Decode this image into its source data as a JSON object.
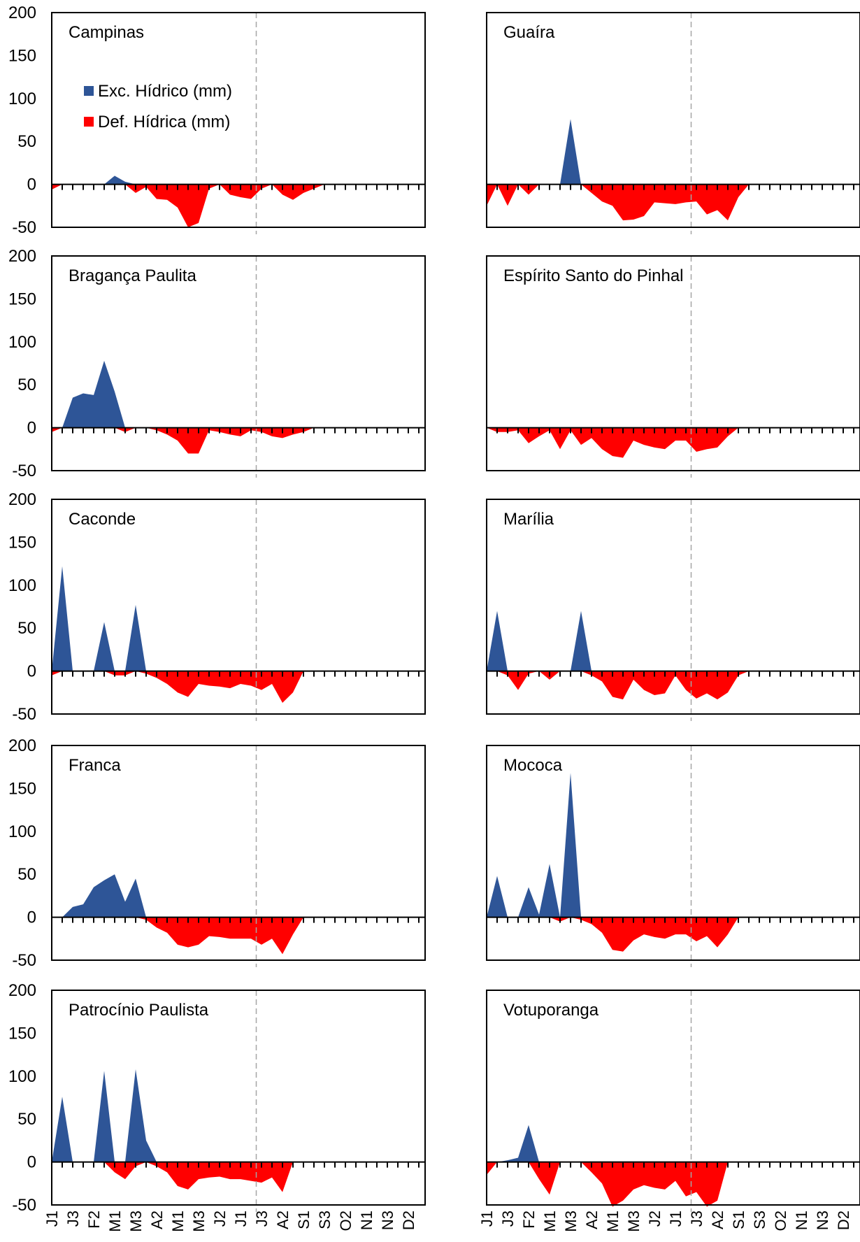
{
  "figure": {
    "legend": [
      {
        "label": "Exc. Hídrico (mm)",
        "color": "#2E5597"
      },
      {
        "label": "Def. Hídrica (mm)",
        "color": "#FF0000"
      }
    ],
    "x_tick_labels": [
      "J1",
      "J3",
      "F2",
      "M1",
      "M3",
      "A2",
      "M1",
      "M3",
      "J2",
      "J1",
      "J3",
      "A2",
      "S1",
      "S3",
      "O2",
      "N1",
      "N3",
      "D2"
    ],
    "y_tick_labels": [
      "200",
      "150",
      "100",
      "50",
      "0",
      "-50"
    ],
    "colors": {
      "excess": "#2E5597",
      "deficit": "#FF0000",
      "divider": "#A6A6A6",
      "frame": "#000000"
    }
  },
  "chart_data": [
    {
      "type": "area",
      "title": "Campinas",
      "ylim": [
        -50,
        200
      ],
      "series": [
        {
          "name": "Exc. Hídrico (mm)",
          "values": [
            0,
            0,
            0,
            0,
            0,
            0,
            10,
            3,
            0,
            0,
            0,
            0,
            0,
            0,
            0,
            0,
            0,
            0,
            0,
            0,
            0,
            0,
            0,
            0,
            0,
            0,
            0,
            0,
            0,
            0,
            0,
            0,
            0,
            0,
            0,
            0
          ]
        },
        {
          "name": "Def. Hídrica (mm)",
          "values": [
            -6,
            0,
            0,
            0,
            0,
            0,
            0,
            0,
            -10,
            -3,
            -17,
            -18,
            -27,
            -50,
            -45,
            -5,
            0,
            -12,
            -15,
            -17,
            -5,
            0,
            -12,
            -18,
            -10,
            -5,
            0,
            0,
            0,
            0,
            0,
            0,
            0,
            0,
            0,
            0
          ]
        }
      ]
    },
    {
      "type": "area",
      "title": "Guaíra",
      "ylim": [
        -50,
        200
      ],
      "series": [
        {
          "name": "Exc. Hídrico (mm)",
          "values": [
            0,
            0,
            0,
            0,
            0,
            0,
            0,
            0,
            76,
            0,
            0,
            0,
            0,
            0,
            0,
            0,
            0,
            0,
            0,
            0,
            0,
            0,
            0,
            0,
            0,
            0,
            0,
            0,
            0,
            0,
            0,
            0,
            0,
            0,
            0,
            0
          ]
        },
        {
          "name": "Def. Hídrica (mm)",
          "values": [
            -25,
            0,
            -25,
            0,
            -12,
            0,
            0,
            0,
            0,
            0,
            -10,
            -20,
            -25,
            -42,
            -41,
            -37,
            -21,
            -22,
            -23,
            -21,
            -20,
            -35,
            -30,
            -42,
            -15,
            0,
            0,
            0,
            0,
            0,
            0,
            0,
            0,
            0,
            0,
            0
          ]
        }
      ]
    },
    {
      "type": "area",
      "title": "Bragança Paulita",
      "ylim": [
        -50,
        200
      ],
      "series": [
        {
          "name": "Exc. Hídrico (mm)",
          "values": [
            0,
            0,
            35,
            40,
            38,
            78,
            42,
            0,
            0,
            0,
            0,
            0,
            0,
            0,
            0,
            0,
            0,
            0,
            0,
            0,
            0,
            0,
            0,
            0,
            0,
            0,
            0,
            0,
            0,
            0,
            0,
            0,
            0,
            0,
            0,
            0
          ]
        },
        {
          "name": "Def. Hídrica (mm)",
          "values": [
            -5,
            0,
            0,
            0,
            0,
            0,
            0,
            -5,
            0,
            0,
            -3,
            -8,
            -15,
            -30,
            -30,
            -3,
            -5,
            -8,
            -10,
            -3,
            -5,
            -10,
            -12,
            -8,
            -5,
            0,
            0,
            0,
            0,
            0,
            0,
            0,
            0,
            0,
            0,
            0
          ]
        }
      ]
    },
    {
      "type": "area",
      "title": "Espírito Santo do Pinhal",
      "ylim": [
        -50,
        200
      ],
      "series": [
        {
          "name": "Exc. Hídrico (mm)",
          "values": [
            0,
            0,
            0,
            0,
            0,
            0,
            0,
            0,
            0,
            0,
            0,
            0,
            0,
            0,
            0,
            0,
            0,
            0,
            0,
            0,
            0,
            0,
            0,
            0,
            0,
            0,
            0,
            0,
            0,
            0,
            0,
            0,
            0,
            0,
            0,
            0
          ]
        },
        {
          "name": "Def. Hídrica (mm)",
          "values": [
            0,
            -5,
            -5,
            -3,
            -18,
            -10,
            -3,
            -25,
            -3,
            -20,
            -12,
            -25,
            -33,
            -35,
            -15,
            -20,
            -23,
            -25,
            -15,
            -15,
            -28,
            -25,
            -23,
            -10,
            0,
            0,
            0,
            0,
            0,
            0,
            0,
            0,
            0,
            0,
            0,
            0
          ]
        }
      ]
    },
    {
      "type": "area",
      "title": "Caconde",
      "ylim": [
        -50,
        200
      ],
      "series": [
        {
          "name": "Exc. Hídrico (mm)",
          "values": [
            0,
            122,
            0,
            0,
            0,
            57,
            0,
            0,
            77,
            0,
            0,
            0,
            0,
            0,
            0,
            0,
            0,
            0,
            0,
            0,
            0,
            0,
            0,
            0,
            0,
            0,
            0,
            0,
            0,
            0,
            0,
            0,
            0,
            0,
            0,
            0
          ]
        },
        {
          "name": "Def. Hídrica (mm)",
          "values": [
            -5,
            0,
            0,
            0,
            0,
            0,
            -5,
            -5,
            0,
            -3,
            -8,
            -15,
            -25,
            -30,
            -15,
            -17,
            -18,
            -20,
            -15,
            -17,
            -22,
            -15,
            -37,
            -25,
            0,
            0,
            0,
            0,
            0,
            0,
            0,
            0,
            0,
            0,
            0,
            0
          ]
        }
      ]
    },
    {
      "type": "area",
      "title": "Marília",
      "ylim": [
        -50,
        200
      ],
      "series": [
        {
          "name": "Exc. Hídrico (mm)",
          "values": [
            0,
            70,
            0,
            0,
            0,
            0,
            0,
            0,
            0,
            70,
            0,
            0,
            0,
            0,
            0,
            0,
            0,
            0,
            0,
            0,
            0,
            0,
            0,
            0,
            0,
            0,
            0,
            0,
            0,
            0,
            0,
            0,
            0,
            0,
            0,
            0
          ]
        },
        {
          "name": "Def. Hídrica (mm)",
          "values": [
            0,
            0,
            -5,
            -22,
            -3,
            0,
            -10,
            0,
            0,
            0,
            -5,
            -12,
            -30,
            -33,
            -10,
            -22,
            -28,
            -26,
            -5,
            -22,
            -32,
            -26,
            -33,
            -25,
            -5,
            0,
            0,
            0,
            0,
            0,
            0,
            0,
            0,
            0,
            0,
            0
          ]
        }
      ]
    },
    {
      "type": "area",
      "title": "Franca",
      "ylim": [
        -50,
        200
      ],
      "series": [
        {
          "name": "Exc. Hídrico (mm)",
          "values": [
            0,
            0,
            12,
            15,
            35,
            43,
            50,
            18,
            45,
            0,
            0,
            0,
            0,
            0,
            0,
            0,
            0,
            0,
            0,
            0,
            0,
            0,
            0,
            0,
            0,
            0,
            0,
            0,
            0,
            0,
            0,
            0,
            0,
            0,
            0,
            0
          ]
        },
        {
          "name": "Def. Hídrica (mm)",
          "values": [
            0,
            0,
            0,
            0,
            0,
            0,
            0,
            0,
            0,
            -3,
            -12,
            -18,
            -32,
            -35,
            -32,
            -22,
            -23,
            -25,
            -25,
            -25,
            -32,
            -25,
            -43,
            -20,
            0,
            0,
            0,
            0,
            0,
            0,
            0,
            0,
            0,
            0,
            0,
            0
          ]
        }
      ]
    },
    {
      "type": "area",
      "title": "Mococa",
      "ylim": [
        -50,
        200
      ],
      "series": [
        {
          "name": "Exc. Hídrico (mm)",
          "values": [
            0,
            48,
            0,
            0,
            35,
            3,
            62,
            0,
            168,
            0,
            0,
            0,
            0,
            0,
            0,
            0,
            0,
            0,
            0,
            0,
            0,
            0,
            0,
            0,
            0,
            0,
            0,
            0,
            0,
            0,
            0,
            0,
            0,
            0,
            0,
            0
          ]
        },
        {
          "name": "Def. Hídrica (mm)",
          "values": [
            0,
            0,
            0,
            0,
            0,
            0,
            0,
            -5,
            0,
            -3,
            -8,
            -18,
            -38,
            -40,
            -27,
            -20,
            -23,
            -25,
            -20,
            -20,
            -28,
            -22,
            -35,
            -20,
            0,
            0,
            0,
            0,
            0,
            0,
            0,
            0,
            0,
            0,
            0,
            0
          ]
        }
      ]
    },
    {
      "type": "area",
      "title": "Patrocínio Paulista",
      "ylim": [
        -50,
        200
      ],
      "series": [
        {
          "name": "Exc. Hídrico (mm)",
          "values": [
            0,
            76,
            0,
            0,
            0,
            106,
            0,
            0,
            108,
            25,
            0,
            0,
            0,
            0,
            0,
            0,
            0,
            0,
            0,
            0,
            0,
            0,
            0,
            0,
            0,
            0,
            0,
            0,
            0,
            0,
            0,
            0,
            0,
            0,
            0,
            0
          ]
        },
        {
          "name": "Def. Hídrica (mm)",
          "values": [
            0,
            0,
            0,
            0,
            0,
            0,
            -12,
            -20,
            -5,
            0,
            -5,
            -12,
            -28,
            -32,
            -20,
            -18,
            -17,
            -20,
            -20,
            -22,
            -24,
            -18,
            -35,
            0,
            0,
            0,
            0,
            0,
            0,
            0,
            0,
            0,
            0,
            0,
            0,
            0
          ]
        }
      ]
    },
    {
      "type": "area",
      "title": "Votuporanga",
      "ylim": [
        -50,
        200
      ],
      "series": [
        {
          "name": "Exc. Hídrico (mm)",
          "values": [
            0,
            0,
            2,
            5,
            43,
            0,
            0,
            0,
            0,
            0,
            0,
            0,
            0,
            0,
            0,
            0,
            0,
            0,
            0,
            0,
            0,
            0,
            0,
            0,
            0,
            0,
            0,
            0,
            0,
            0,
            0,
            0,
            0,
            0,
            0,
            0
          ]
        },
        {
          "name": "Def. Hídrica (mm)",
          "values": [
            -15,
            0,
            0,
            0,
            0,
            -20,
            -38,
            0,
            0,
            0,
            -12,
            -25,
            -52,
            -45,
            -32,
            -27,
            -30,
            -32,
            -22,
            -40,
            -35,
            -52,
            -45,
            0,
            0,
            0,
            0,
            0,
            0,
            0,
            0,
            0,
            0,
            0,
            0,
            0
          ]
        }
      ]
    }
  ]
}
